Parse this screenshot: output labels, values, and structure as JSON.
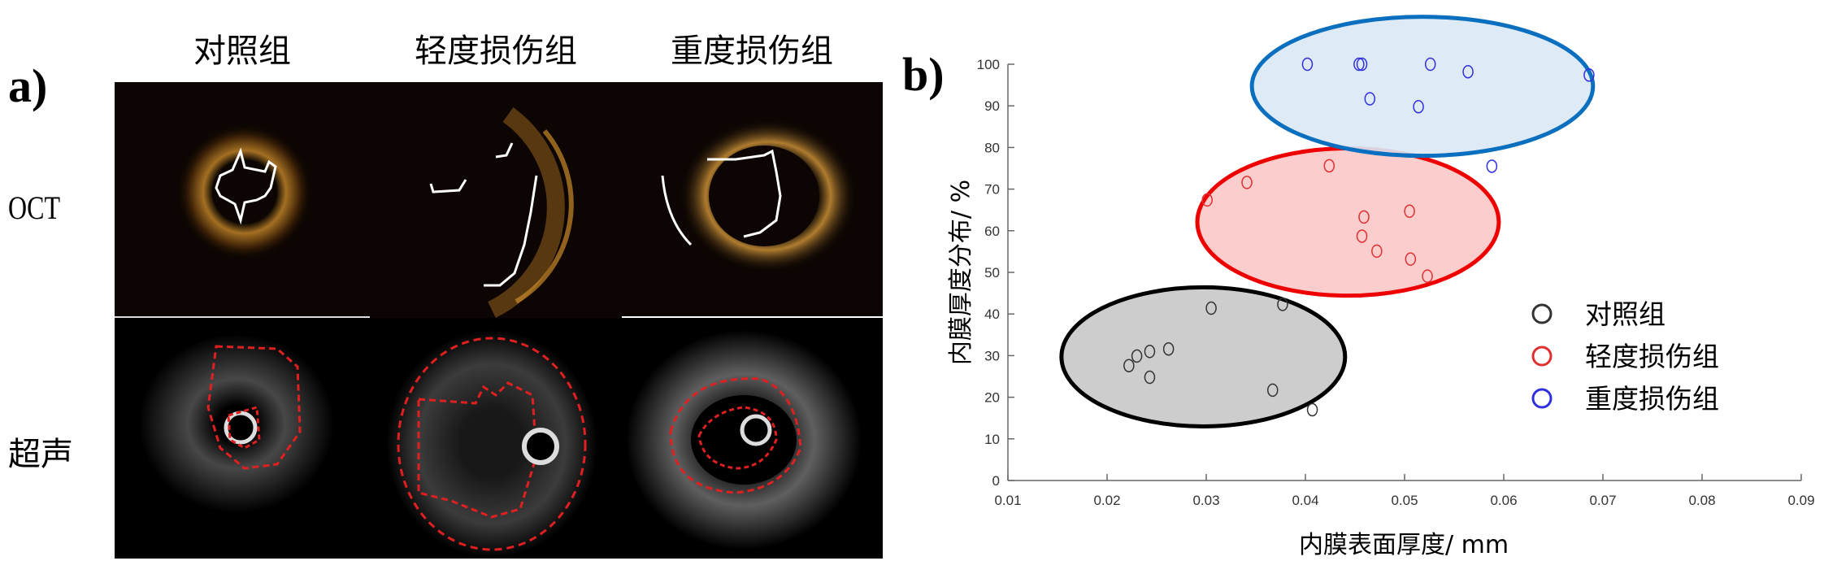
{
  "panel_a": {
    "label": "a)",
    "columns": [
      "对照组",
      "轻度损伤组",
      "重度损伤组"
    ],
    "rows": [
      "OCT",
      "超声"
    ]
  },
  "panel_b": {
    "label": "b)"
  },
  "chart_data": {
    "type": "scatter",
    "title": "",
    "xlabel": "内膜表面厚度/ mm",
    "ylabel": "内膜厚度分布/ %",
    "xlim": [
      0.01,
      0.09
    ],
    "ylim": [
      0,
      100
    ],
    "xticks": [
      "0.01",
      "0.02",
      "0.03",
      "0.04",
      "0.05",
      "0.06",
      "0.07",
      "0.08",
      "0.09"
    ],
    "yticks": [
      "0",
      "10",
      "20",
      "30",
      "40",
      "50",
      "60",
      "70",
      "80",
      "90",
      "100"
    ],
    "grid": false,
    "legend_position": "right",
    "series": [
      {
        "name": "对照组",
        "color": "#333333",
        "ellipse": {
          "cx": 0.0297,
          "cy": 29.7,
          "rx": 0.0143,
          "ry": 16.7,
          "fill": "#c8c8c8",
          "stroke": "#000000"
        },
        "points": [
          [
            0.0305,
            41.4
          ],
          [
            0.0377,
            42.3
          ],
          [
            0.0262,
            31.6
          ],
          [
            0.0243,
            31.0
          ],
          [
            0.023,
            29.9
          ],
          [
            0.0222,
            27.6
          ],
          [
            0.0243,
            24.8
          ],
          [
            0.0367,
            21.7
          ],
          [
            0.0407,
            17.0
          ]
        ]
      },
      {
        "name": "轻度损伤组",
        "color": "#e03030",
        "ellipse": {
          "cx": 0.0443,
          "cy": 62.1,
          "rx": 0.0152,
          "ry": 17.7,
          "fill": "#fcc8c8",
          "stroke": "#ee0000"
        },
        "points": [
          [
            0.0424,
            75.6
          ],
          [
            0.0341,
            71.6
          ],
          [
            0.0301,
            67.4
          ],
          [
            0.0505,
            64.7
          ],
          [
            0.0459,
            63.3
          ],
          [
            0.0457,
            58.7
          ],
          [
            0.0472,
            55.1
          ],
          [
            0.0506,
            53.2
          ],
          [
            0.0523,
            49.1
          ]
        ]
      },
      {
        "name": "重度损伤组",
        "color": "#3030e0",
        "ellipse": {
          "cx": 0.0518,
          "cy": 94.7,
          "rx": 0.0172,
          "ry": 16.7,
          "fill": "#dce8f6",
          "stroke": "#0b6fbf"
        },
        "points": [
          [
            0.0402,
            100
          ],
          [
            0.0454,
            100
          ],
          [
            0.0457,
            100
          ],
          [
            0.0526,
            100
          ],
          [
            0.0564,
            98.2
          ],
          [
            0.0686,
            97.4
          ],
          [
            0.0465,
            91.7
          ],
          [
            0.0514,
            89.8
          ],
          [
            0.0588,
            75.5
          ]
        ]
      }
    ]
  }
}
